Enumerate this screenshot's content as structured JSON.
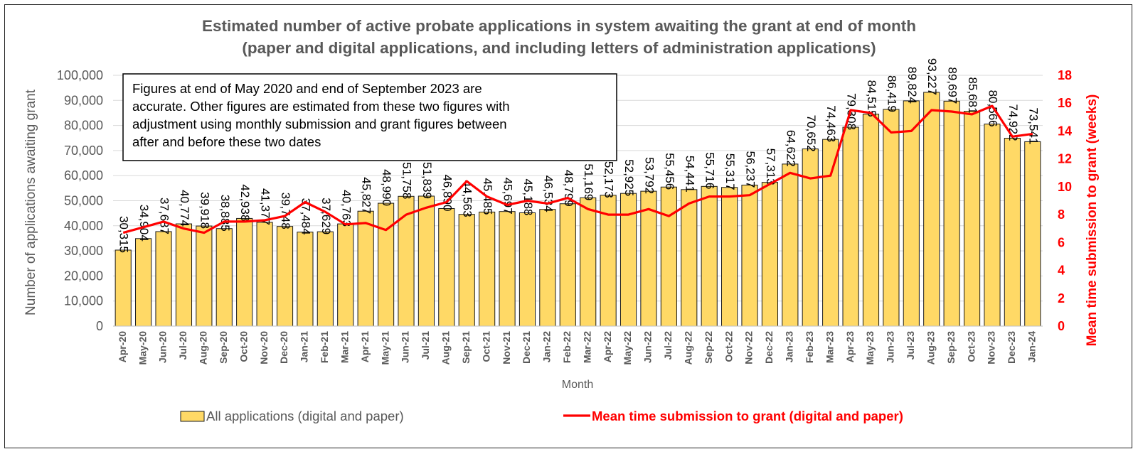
{
  "colors": {
    "bar_fill": "#ffd966",
    "bar_stroke": "#1a1a1a",
    "line": "#ff0000",
    "axis_text": "#595959",
    "secondary_axis_text": "#ff0000",
    "gridline": "#d9d9d9"
  },
  "chart_data": {
    "type": "bar",
    "title_line1": "Estimated number of active probate applications in system awaiting the grant at end of month",
    "title_line2": "(paper and digital applications, and including letters of administration applications)",
    "xlabel": "Month",
    "ylabel": "Number of applications awaiting grant",
    "y2label": "Mean time submission to grant (weeks)",
    "ylim": [
      0,
      100000
    ],
    "y2lim": [
      0,
      18
    ],
    "yticks": [
      "0",
      "10,000",
      "20,000",
      "30,000",
      "40,000",
      "50,000",
      "60,000",
      "70,000",
      "80,000",
      "90,000",
      "100,000"
    ],
    "y2ticks": [
      "0",
      "2",
      "4",
      "6",
      "8",
      "10",
      "12",
      "14",
      "16",
      "18"
    ],
    "grid": "horizontal",
    "legend_position": "bottom",
    "annotation_lines": [
      "Figures at end of May 2020 and end of September 2023 are",
      "accurate. Other figures are estimated from these two figures with",
      "adjustment using monthly submission and grant figures between",
      "after and before these two dates"
    ],
    "categories": [
      "Apr-20",
      "May-20",
      "Jun-20",
      "Jul-20",
      "Aug-20",
      "Sep-20",
      "Oct-20",
      "Nov-20",
      "Dec-20",
      "Jan-21",
      "Feb-21",
      "Mar-21",
      "Apr-21",
      "May-21",
      "Jun-21",
      "Jul-21",
      "Aug-21",
      "Sep-21",
      "Oct-21",
      "Nov-21",
      "Dec-21",
      "Jan-22",
      "Feb-22",
      "Mar-22",
      "Apr-22",
      "May-22",
      "Jun-22",
      "Jul-22",
      "Aug-22",
      "Sep-22",
      "Oct-22",
      "Nov-22",
      "Dec-22",
      "Jan-23",
      "Feb-23",
      "Mar-23",
      "Apr-23",
      "May-23",
      "Jun-23",
      "Jul-23",
      "Aug-23",
      "Sep-23",
      "Oct-23",
      "Nov-23",
      "Dec-23",
      "Jan-24"
    ],
    "series": [
      {
        "name": "All applications (digital and paper)",
        "type": "bar",
        "axis": "primary",
        "values": [
          30315,
          34904,
          37687,
          40774,
          39918,
          38885,
          42938,
          41377,
          39748,
          37484,
          37629,
          40763,
          45827,
          48990,
          51758,
          51839,
          46890,
          44563,
          45485,
          45697,
          45188,
          46534,
          48799,
          51169,
          52173,
          52925,
          53792,
          55456,
          54441,
          55716,
          55317,
          56237,
          57313,
          64622,
          70652,
          74463,
          79308,
          84515,
          86419,
          89824,
          93227,
          89697,
          85681,
          80566,
          74922,
          73541
        ],
        "labels": [
          "30,315",
          "34,904",
          "37,687",
          "40,774",
          "39,918",
          "38,885",
          "42,938",
          "41,377",
          "39,748",
          "37,484",
          "37,629",
          "40,763",
          "45,827",
          "48,990",
          "51,758",
          "51,839",
          "46,890",
          "44,563",
          "45,485",
          "45,697",
          "45,188",
          "46,534",
          "48,799",
          "51,169",
          "52,173",
          "52,925",
          "53,792",
          "55,456",
          "54,441",
          "55,716",
          "55,317",
          "56,237",
          "57,313",
          "64,622",
          "70,652",
          "74,463",
          "79,308",
          "84,515",
          "86,419",
          "89,824",
          "93,227",
          "89,697",
          "85,681",
          "80,566",
          "74,922",
          "73,541"
        ]
      },
      {
        "name": "Mean time submission to grant (digital and paper)",
        "type": "line",
        "axis": "secondary",
        "values": [
          6.7,
          7.1,
          7.5,
          7.0,
          6.7,
          7.5,
          7.5,
          7.6,
          7.9,
          8.9,
          8.2,
          7.3,
          7.4,
          6.9,
          8.0,
          8.5,
          8.9,
          10.4,
          9.3,
          8.7,
          9.0,
          8.8,
          9.2,
          8.4,
          8.0,
          8.0,
          8.4,
          7.9,
          8.8,
          9.3,
          9.3,
          9.4,
          10.2,
          11.0,
          10.6,
          10.8,
          15.5,
          15.3,
          13.9,
          14.0,
          15.5,
          15.4,
          15.2,
          15.8,
          13.6,
          13.8
        ]
      }
    ]
  }
}
